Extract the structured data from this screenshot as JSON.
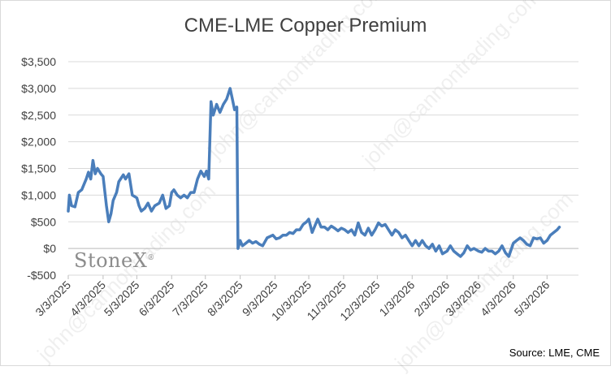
{
  "chart_data": {
    "type": "line",
    "title": "CME-LME Copper Premium",
    "xlabel": "",
    "ylabel": "",
    "ylim": [
      -500,
      3500
    ],
    "yticks": [
      -500,
      0,
      500,
      1000,
      1500,
      2000,
      2500,
      3000,
      3500
    ],
    "ytick_labels": [
      "-$500",
      "$0",
      "$500",
      "$1,000",
      "$1,500",
      "$2,000",
      "$2,500",
      "$3,000",
      "$3,500"
    ],
    "xlim": [
      "3/3/2025",
      "5/31/2026"
    ],
    "xtick_labels": [
      "3/3/2025",
      "4/3/2025",
      "5/3/2025",
      "6/3/2025",
      "7/3/2025",
      "8/3/2025",
      "9/3/2025",
      "10/3/2025",
      "11/3/2025",
      "12/3/2025",
      "1/3/2026",
      "2/3/2026",
      "3/3/2026",
      "4/3/2026",
      "5/3/2026"
    ],
    "grid": "horizontal",
    "line_color": "#4a7ebb",
    "series": [
      {
        "name": "",
        "points": [
          [
            "3/3/2025",
            700
          ],
          [
            "3/4/2025",
            1000
          ],
          [
            "3/6/2025",
            800
          ],
          [
            "3/9/2025",
            780
          ],
          [
            "3/12/2025",
            1050
          ],
          [
            "3/15/2025",
            1100
          ],
          [
            "3/19/2025",
            1300
          ],
          [
            "3/21/2025",
            1430
          ],
          [
            "3/23/2025",
            1300
          ],
          [
            "3/25/2025",
            1650
          ],
          [
            "3/27/2025",
            1400
          ],
          [
            "3/29/2025",
            1500
          ],
          [
            "4/1/2025",
            1400
          ],
          [
            "4/3/2025",
            1350
          ],
          [
            "4/6/2025",
            800
          ],
          [
            "4/8/2025",
            500
          ],
          [
            "4/10/2025",
            650
          ],
          [
            "4/12/2025",
            900
          ],
          [
            "4/15/2025",
            1050
          ],
          [
            "4/17/2025",
            1250
          ],
          [
            "4/21/2025",
            1380
          ],
          [
            "4/23/2025",
            1300
          ],
          [
            "4/26/2025",
            1400
          ],
          [
            "4/29/2025",
            1000
          ],
          [
            "5/3/2025",
            950
          ],
          [
            "5/5/2025",
            800
          ],
          [
            "5/7/2025",
            700
          ],
          [
            "5/10/2025",
            750
          ],
          [
            "5/13/2025",
            850
          ],
          [
            "5/16/2025",
            700
          ],
          [
            "5/19/2025",
            800
          ],
          [
            "5/23/2025",
            850
          ],
          [
            "5/26/2025",
            1000
          ],
          [
            "5/29/2025",
            750
          ],
          [
            "6/1/2025",
            800
          ],
          [
            "6/3/2025",
            1050
          ],
          [
            "6/5/2025",
            1100
          ],
          [
            "6/8/2025",
            1000
          ],
          [
            "6/11/2025",
            950
          ],
          [
            "6/14/2025",
            1000
          ],
          [
            "6/17/2025",
            950
          ],
          [
            "6/20/2025",
            1050
          ],
          [
            "6/23/2025",
            1050
          ],
          [
            "6/26/2025",
            1300
          ],
          [
            "6/29/2025",
            1450
          ],
          [
            "7/2/2025",
            1350
          ],
          [
            "7/4/2025",
            1450
          ],
          [
            "7/6/2025",
            1300
          ],
          [
            "7/8/2025",
            2750
          ],
          [
            "7/10/2025",
            2500
          ],
          [
            "7/13/2025",
            2700
          ],
          [
            "7/16/2025",
            2550
          ],
          [
            "7/19/2025",
            2700
          ],
          [
            "7/22/2025",
            2800
          ],
          [
            "7/25/2025",
            3000
          ],
          [
            "7/27/2025",
            2800
          ],
          [
            "7/29/2025",
            2600
          ],
          [
            "7/31/2025",
            2650
          ],
          [
            "8/1/2025",
            0
          ],
          [
            "8/3/2025",
            150
          ],
          [
            "8/5/2025",
            50
          ],
          [
            "8/8/2025",
            100
          ],
          [
            "8/11/2025",
            150
          ],
          [
            "8/14/2025",
            100
          ],
          [
            "8/17/2025",
            130
          ],
          [
            "8/20/2025",
            80
          ],
          [
            "8/23/2025",
            50
          ],
          [
            "8/27/2025",
            200
          ],
          [
            "9/1/2025",
            250
          ],
          [
            "9/4/2025",
            180
          ],
          [
            "9/7/2025",
            200
          ],
          [
            "9/10/2025",
            250
          ],
          [
            "9/13/2025",
            250
          ],
          [
            "9/16/2025",
            300
          ],
          [
            "9/19/2025",
            280
          ],
          [
            "9/22/2025",
            350
          ],
          [
            "9/25/2025",
            350
          ],
          [
            "9/28/2025",
            450
          ],
          [
            "10/1/2025",
            500
          ],
          [
            "10/3/2025",
            550
          ],
          [
            "10/6/2025",
            300
          ],
          [
            "10/9/2025",
            450
          ],
          [
            "10/11/2025",
            550
          ],
          [
            "10/14/2025",
            400
          ],
          [
            "10/17/2025",
            400
          ],
          [
            "10/20/2025",
            350
          ],
          [
            "10/23/2025",
            420
          ],
          [
            "10/26/2025",
            380
          ],
          [
            "10/29/2025",
            330
          ],
          [
            "11/1/2025",
            380
          ],
          [
            "11/4/2025",
            350
          ],
          [
            "11/7/2025",
            300
          ],
          [
            "11/10/2025",
            350
          ],
          [
            "11/13/2025",
            250
          ],
          [
            "11/16/2025",
            480
          ],
          [
            "11/19/2025",
            300
          ],
          [
            "11/22/2025",
            250
          ],
          [
            "11/25/2025",
            380
          ],
          [
            "11/28/2025",
            250
          ],
          [
            "12/1/2025",
            350
          ],
          [
            "12/4/2025",
            480
          ],
          [
            "12/7/2025",
            420
          ],
          [
            "12/10/2025",
            450
          ],
          [
            "12/13/2025",
            350
          ],
          [
            "12/16/2025",
            250
          ],
          [
            "12/19/2025",
            350
          ],
          [
            "12/22/2025",
            300
          ],
          [
            "12/25/2025",
            200
          ],
          [
            "12/28/2025",
            250
          ],
          [
            "12/31/2025",
            150
          ],
          [
            "1/3/2026",
            50
          ],
          [
            "1/6/2026",
            150
          ],
          [
            "1/9/2026",
            50
          ],
          [
            "1/12/2026",
            150
          ],
          [
            "1/15/2026",
            50
          ],
          [
            "1/18/2026",
            0
          ],
          [
            "1/21/2026",
            80
          ],
          [
            "1/24/2026",
            -50
          ],
          [
            "1/27/2026",
            50
          ],
          [
            "1/30/2026",
            -100
          ],
          [
            "2/3/2026",
            -50
          ],
          [
            "2/6/2026",
            50
          ],
          [
            "2/9/2026",
            -50
          ],
          [
            "2/12/2026",
            -100
          ],
          [
            "2/15/2026",
            -150
          ],
          [
            "2/18/2026",
            -80
          ],
          [
            "2/21/2026",
            50
          ],
          [
            "2/24/2026",
            -30
          ],
          [
            "2/27/2026",
            0
          ],
          [
            "3/3/2026",
            -50
          ],
          [
            "3/6/2026",
            -70
          ],
          [
            "3/9/2026",
            0
          ],
          [
            "3/12/2026",
            -50
          ],
          [
            "3/15/2026",
            -50
          ],
          [
            "3/18/2026",
            -100
          ],
          [
            "3/21/2026",
            -50
          ],
          [
            "3/24/2026",
            50
          ],
          [
            "3/27/2026",
            -80
          ],
          [
            "3/30/2026",
            -150
          ],
          [
            "4/3/2026",
            100
          ],
          [
            "4/6/2026",
            150
          ],
          [
            "4/9/2026",
            200
          ],
          [
            "4/12/2026",
            150
          ],
          [
            "4/15/2026",
            80
          ],
          [
            "4/18/2026",
            50
          ],
          [
            "4/21/2026",
            200
          ],
          [
            "4/24/2026",
            180
          ],
          [
            "4/27/2026",
            200
          ],
          [
            "4/30/2026",
            100
          ],
          [
            "5/3/2026",
            150
          ],
          [
            "5/6/2026",
            250
          ],
          [
            "5/9/2026",
            300
          ],
          [
            "5/12/2026",
            350
          ],
          [
            "5/14/2026",
            400
          ]
        ]
      }
    ]
  },
  "source": "Source: LME, CME",
  "logo": {
    "text": "StoneX",
    "mark": "®"
  },
  "watermark": "john@cannontrading.com"
}
